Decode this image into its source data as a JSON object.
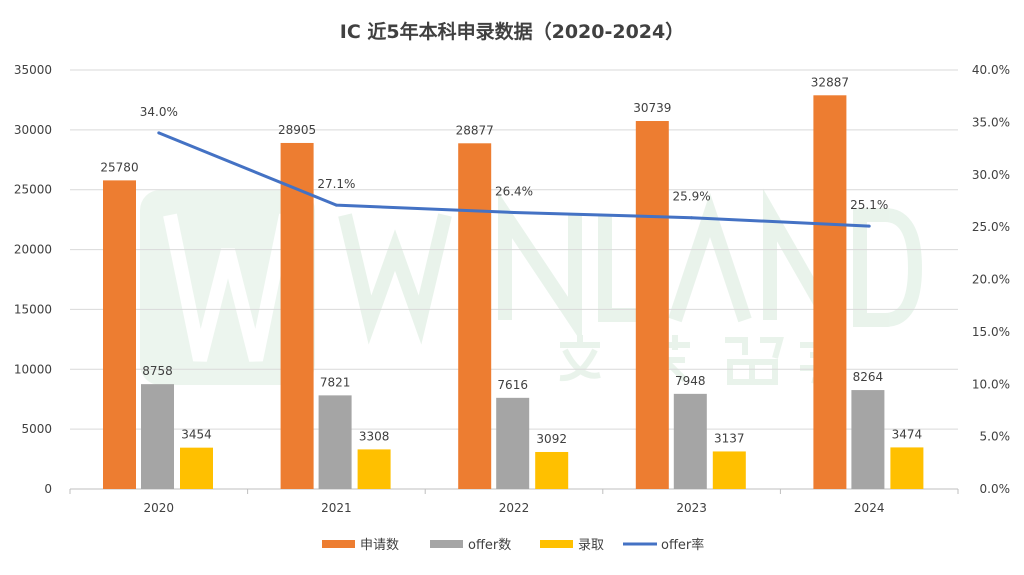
{
  "chart_data": {
    "type": "bar",
    "title": "IC 近5年本科申录数据（2020-2024）",
    "categories": [
      "2020",
      "2021",
      "2022",
      "2023",
      "2024"
    ],
    "series": [
      {
        "name": "申请数",
        "type": "bar",
        "axis": "left",
        "color": "#ED7D31",
        "values": [
          25780,
          28905,
          28877,
          30739,
          32887
        ]
      },
      {
        "name": "offer数",
        "type": "bar",
        "axis": "left",
        "color": "#A5A5A5",
        "values": [
          8758,
          7821,
          7616,
          7948,
          8264
        ]
      },
      {
        "name": "录取",
        "type": "bar",
        "axis": "left",
        "color": "#FFC000",
        "values": [
          3454,
          3308,
          3092,
          3137,
          3474
        ]
      },
      {
        "name": "offer率",
        "type": "line",
        "axis": "right",
        "color": "#4472C4",
        "values": [
          34.0,
          27.1,
          26.4,
          25.9,
          25.1
        ],
        "labels": [
          "34.0%",
          "27.1%",
          "26.4%",
          "25.9%",
          "25.1%"
        ]
      }
    ],
    "ylim": [
      0,
      35000
    ],
    "yticks": [
      "0",
      "5000",
      "10000",
      "15000",
      "20000",
      "25000",
      "30000",
      "35000"
    ],
    "y2lim": [
      0,
      40
    ],
    "y2ticks": [
      "0.0%",
      "5.0%",
      "10.0%",
      "15.0%",
      "20.0%",
      "25.0%",
      "30.0%",
      "35.0%",
      "40.0%"
    ],
    "grid": true,
    "legend": "bottom",
    "xlabel": "",
    "ylabel": ""
  },
  "watermark": {
    "text": "WINLAND",
    "subtext": "文英留学",
    "mark": "TM"
  }
}
